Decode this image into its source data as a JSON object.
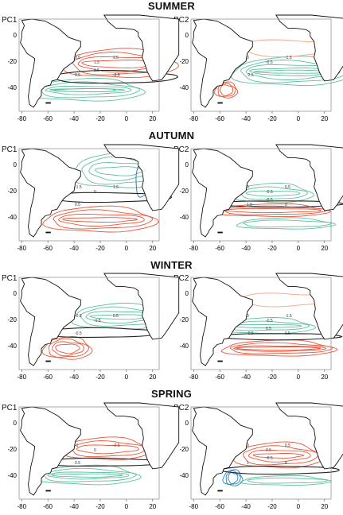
{
  "seasons": [
    {
      "name": "SUMMER"
    },
    {
      "name": "AUTUMN"
    },
    {
      "name": "WINTER"
    },
    {
      "name": "SPRING"
    }
  ],
  "pc_labels": [
    "PC1",
    "PC2"
  ],
  "x_ticks": [
    "-80",
    "-60",
    "-40",
    "-20",
    "0",
    "20"
  ],
  "y_ticks": [
    "0",
    "-20",
    "-40"
  ],
  "colors": {
    "positive": "#e8553a",
    "positive_light": "#f4a582",
    "negative": "#2a7fb8",
    "negative_light": "#5fbfa0",
    "zero": "#222222",
    "coast": "#111111"
  },
  "contour_labels": {
    "summer_pc1": [
      "0.5",
      "1.5",
      "2.5",
      "0.5",
      "1.5",
      "-0.5"
    ],
    "summer_pc2": [
      "0",
      "-0.5",
      "-1.5",
      "-2.5"
    ],
    "autumn_pc1": [
      "-1.5",
      "0",
      "1.5",
      "0.5"
    ],
    "autumn_pc2": [
      "0",
      "-0.5",
      "0.5",
      "1.5",
      "-0.5",
      "0"
    ],
    "winter_pc1": [
      "-0.5",
      "-1.5",
      "0.5",
      "-0.5"
    ],
    "winter_pc2": [
      "0",
      "-0.5",
      "-1.5",
      "-0.5",
      "0.5",
      "0.5"
    ],
    "spring_pc1": [
      "-1",
      "0",
      "-0.5",
      "0.5"
    ],
    "spring_pc2": [
      "0",
      "0.5",
      "0.5",
      "1",
      "-0.5",
      "0"
    ]
  }
}
